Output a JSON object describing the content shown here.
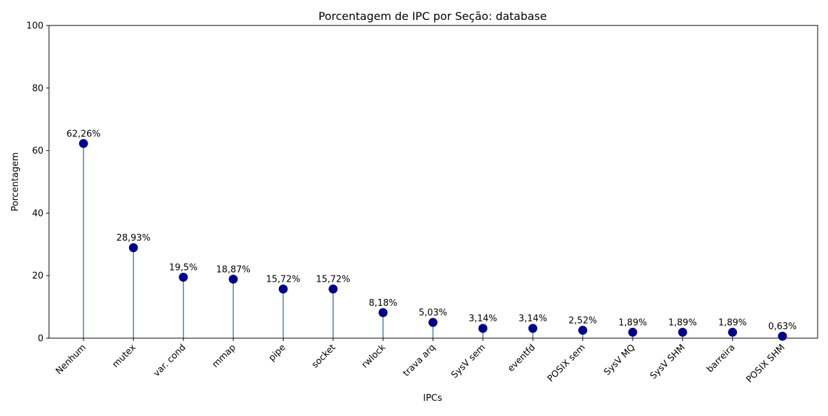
{
  "chart_data": {
    "type": "lollipop",
    "title": "Porcentagem de IPC por Seção: database",
    "xlabel": "IPCs",
    "ylabel": "Porcentagem",
    "ylim": [
      0,
      100
    ],
    "yticks": [
      "0",
      "20",
      "40",
      "60",
      "80",
      "100"
    ],
    "categories": [
      "Nenhum",
      "mutex",
      "var. cond",
      "mmap",
      "pipe",
      "socket",
      "rwlock",
      "trava arq",
      "SysV sem",
      "eventfd",
      "POSIX sem",
      "SysV MQ",
      "SysV SHM",
      "barreira",
      "POSIX SHM"
    ],
    "values": [
      62.26,
      28.93,
      19.5,
      18.87,
      15.72,
      15.72,
      8.18,
      5.03,
      3.14,
      3.14,
      2.52,
      1.89,
      1.89,
      1.89,
      0.63
    ],
    "value_labels": [
      "62,26%",
      "28,93%",
      "19,5%",
      "18,87%",
      "15,72%",
      "15,72%",
      "8,18%",
      "5,03%",
      "3,14%",
      "3,14%",
      "2,52%",
      "1,89%",
      "1,89%",
      "1,89%",
      "0,63%"
    ],
    "grid": false,
    "colors": {
      "marker": "#00008b",
      "stem": "#4682b4"
    }
  }
}
